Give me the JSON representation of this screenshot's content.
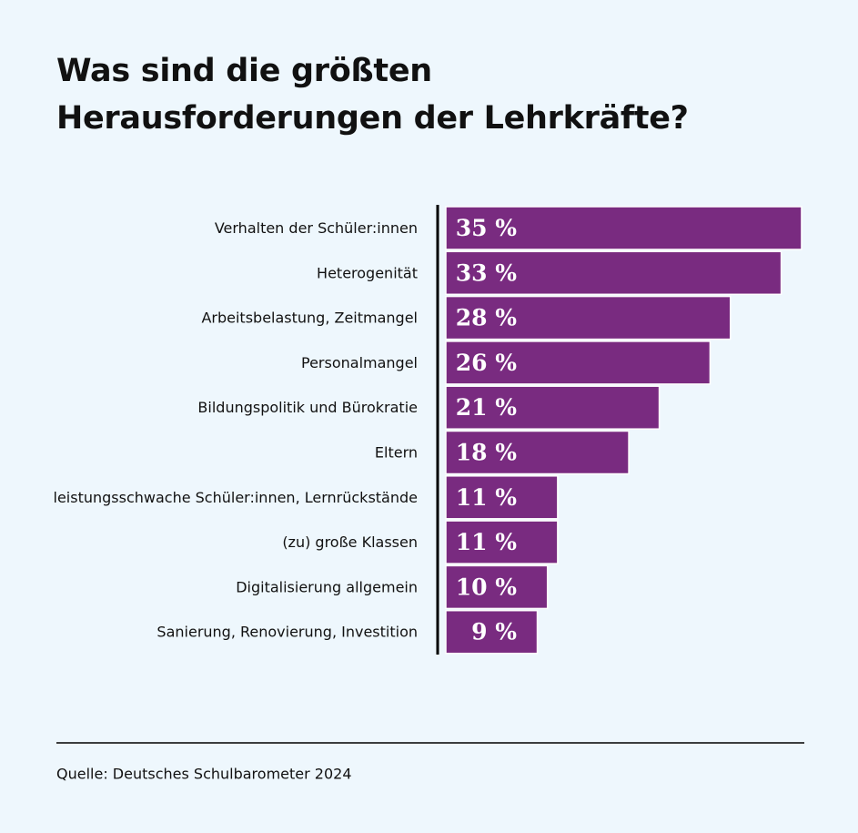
{
  "chart_data": {
    "type": "bar",
    "orientation": "horizontal",
    "title": "Was sind die größten Herausforderungen der Lehrkräfte?",
    "categories": [
      "Verhalten der Schüler:innen",
      "Heterogenität",
      "Arbeitsbelastung, Zeitmangel",
      "Personalmangel",
      "Bildungspolitik und Bürokratie",
      "Eltern",
      "leistungsschwache Schüler:innen, Lernrückstände",
      "(zu) große Klassen",
      "Digitalisierung allgemein",
      "Sanierung, Renovierung, Investition"
    ],
    "values": [
      35,
      33,
      28,
      26,
      21,
      18,
      11,
      11,
      10,
      9
    ],
    "value_labels": [
      "35 %",
      "33 %",
      "28 %",
      "26 %",
      "21 %",
      "18 %",
      "11 %",
      "11 %",
      "10 %",
      "9 %"
    ],
    "color": "#792b80",
    "source": "Quelle: Deutsches Schulbarometer 2024"
  }
}
